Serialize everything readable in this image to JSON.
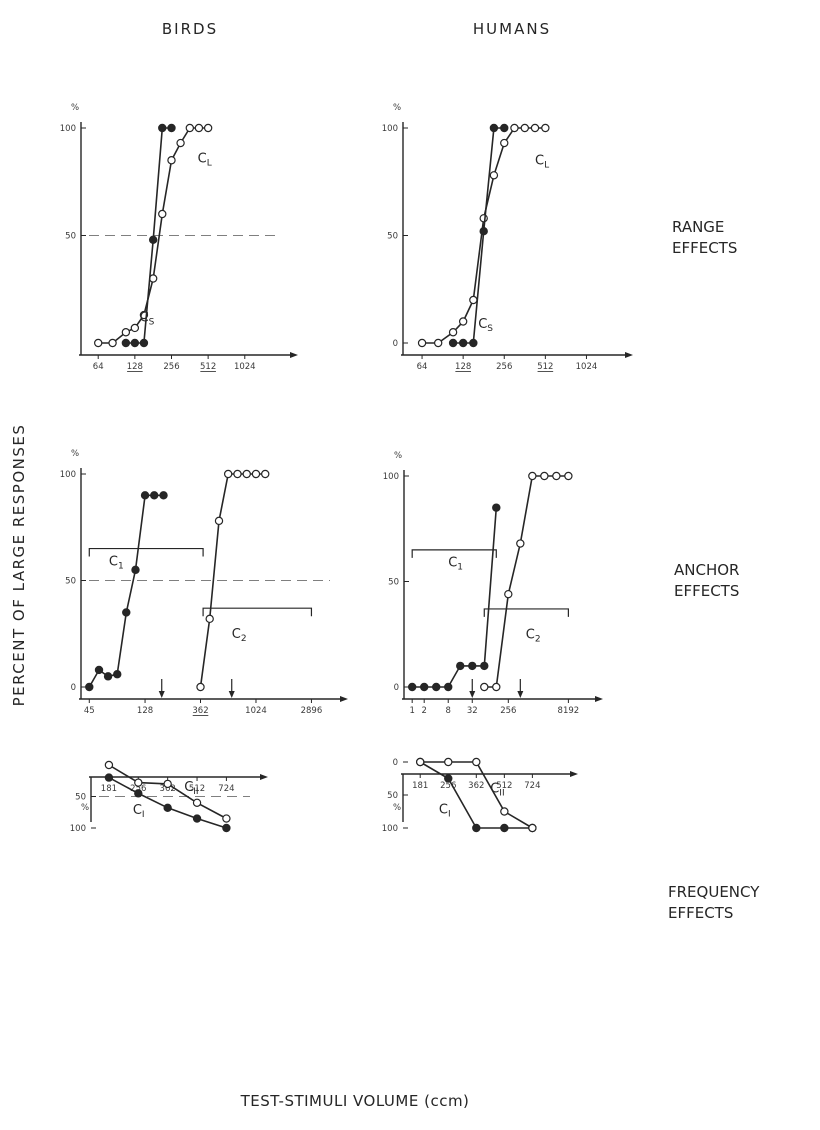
{
  "figure": {
    "col_titles": [
      "BIRDS",
      "HUMANS"
    ],
    "row_titles": [
      [
        "RANGE",
        "EFFECTS"
      ],
      [
        "ANCHOR",
        "EFFECTS"
      ],
      [
        "FREQUENCY",
        "EFFECTS"
      ]
    ],
    "ylabel": "PERCENT OF LARGE RESPONSES",
    "xlabel": "TEST-STIMULI VOLUME (ccm)"
  },
  "chart_data": [
    {
      "id": "range-birds",
      "type": "line",
      "xscale": "log2",
      "ylim": [
        0,
        100
      ],
      "xlim": [
        48,
        1650
      ],
      "yticks": [
        {
          "v": 100,
          "t": "100"
        },
        {
          "v": 50,
          "t": "50"
        }
      ],
      "ytop_label": "%",
      "mid_dash": true,
      "xticks": [
        {
          "v": 64,
          "t": "64"
        },
        {
          "v": 128,
          "t": "128",
          "u": true
        },
        {
          "v": 256,
          "t": "256"
        },
        {
          "v": 512,
          "t": "512",
          "u": true
        },
        {
          "v": 1024,
          "t": "1024"
        }
      ],
      "series": [
        {
          "name": "CL",
          "filled": false,
          "x": [
            64,
            84,
            108,
            128,
            152,
            181,
            215,
            256,
            304,
            362,
            430,
            512
          ],
          "y": [
            0,
            0,
            5,
            7,
            13,
            30,
            60,
            85,
            93,
            100,
            100,
            100
          ]
        },
        {
          "name": "CS",
          "filled": true,
          "x": [
            108,
            128,
            152,
            181,
            215,
            256
          ],
          "y": [
            0,
            0,
            0,
            48,
            100,
            100
          ]
        }
      ],
      "labels": [
        {
          "t": "C",
          "s": "L",
          "x": 420,
          "y": 84
        },
        {
          "t": "C",
          "s": "S",
          "x": 140,
          "y": 10
        }
      ],
      "brackets": [],
      "arrows": []
    },
    {
      "id": "range-humans",
      "type": "line",
      "xscale": "log2",
      "ylim": [
        0,
        100
      ],
      "xlim": [
        48,
        1400
      ],
      "yticks": [
        {
          "v": 100,
          "t": "100"
        },
        {
          "v": 50,
          "t": "50"
        },
        {
          "v": 0,
          "t": "0"
        }
      ],
      "ytop_label": "%",
      "mid_dash": false,
      "xticks": [
        {
          "v": 64,
          "t": "64"
        },
        {
          "v": 128,
          "t": "128",
          "u": true
        },
        {
          "v": 256,
          "t": "256"
        },
        {
          "v": 512,
          "t": "512",
          "u": true
        },
        {
          "v": 1024,
          "t": "1024"
        }
      ],
      "series": [
        {
          "name": "CL",
          "filled": false,
          "x": [
            64,
            84,
            108,
            128,
            152,
            181,
            215,
            256,
            304,
            362,
            430,
            512
          ],
          "y": [
            0,
            0,
            5,
            10,
            20,
            58,
            78,
            93,
            100,
            100,
            100,
            100
          ]
        },
        {
          "name": "CS",
          "filled": true,
          "x": [
            108,
            128,
            152,
            181,
            215,
            256
          ],
          "y": [
            0,
            0,
            0,
            52,
            100,
            100
          ]
        }
      ],
      "labels": [
        {
          "t": "C",
          "s": "L",
          "x": 430,
          "y": 83
        },
        {
          "t": "C",
          "s": "S",
          "x": 165,
          "y": 7
        }
      ],
      "brackets": [],
      "arrows": []
    },
    {
      "id": "anchor-birds",
      "type": "line",
      "xscale": "log2",
      "ylim": [
        0,
        100
      ],
      "xlim": [
        40,
        3400
      ],
      "yticks": [
        {
          "v": 100,
          "t": "100"
        },
        {
          "v": 50,
          "t": "50"
        },
        {
          "v": 0,
          "t": "0"
        }
      ],
      "ytop_label": "%",
      "mid_dash": true,
      "xticks": [
        {
          "v": 45,
          "t": "45"
        },
        {
          "v": 128,
          "t": "128"
        },
        {
          "v": 362,
          "t": "362",
          "u": true
        },
        {
          "v": 1024,
          "t": "1024"
        },
        {
          "v": 2896,
          "t": "2896"
        }
      ],
      "series": [
        {
          "name": "C1",
          "filled": true,
          "x": [
            45,
            54,
            64,
            76,
            90,
            107,
            128,
            152,
            181
          ],
          "y": [
            0,
            8,
            5,
            6,
            35,
            55,
            90,
            90,
            90
          ]
        },
        {
          "name": "C2",
          "filled": false,
          "x": [
            362,
            430,
            512,
            608,
            724,
            861,
            1024,
            1218
          ],
          "y": [
            0,
            32,
            78,
            100,
            100,
            100,
            100,
            100
          ]
        }
      ],
      "labels": [
        {
          "t": "C",
          "s": "1",
          "x": 65,
          "y": 57
        },
        {
          "t": "C",
          "s": "2",
          "x": 650,
          "y": 23
        }
      ],
      "brackets": [
        {
          "x1": 45,
          "x2": 380,
          "y": 65
        },
        {
          "x1": 380,
          "x2": 2896,
          "y": 37
        }
      ],
      "arrows": [
        175,
        650
      ]
    },
    {
      "id": "anchor-humans",
      "type": "line",
      "xscale": "log2",
      "ylim": [
        0,
        100
      ],
      "xlim": [
        0.7,
        12000
      ],
      "yticks": [
        {
          "v": 100,
          "t": "100"
        },
        {
          "v": 50,
          "t": "50"
        },
        {
          "v": 0,
          "t": "0"
        }
      ],
      "ytop_label": "%",
      "mid_dash": false,
      "xticks": [
        {
          "v": 1,
          "t": "1"
        },
        {
          "v": 2,
          "t": "2"
        },
        {
          "v": 8,
          "t": "8"
        },
        {
          "v": 32,
          "t": "32"
        },
        {
          "v": 256,
          "t": "256"
        },
        {
          "v": 8192,
          "t": "8192"
        }
      ],
      "series": [
        {
          "name": "C1",
          "filled": true,
          "x": [
            1,
            2,
            4,
            8,
            16,
            32,
            64,
            128
          ],
          "y": [
            0,
            0,
            0,
            0,
            10,
            10,
            10,
            85
          ]
        },
        {
          "name": "C2",
          "filled": false,
          "x": [
            64,
            128,
            256,
            512,
            1024,
            2048,
            4096,
            8192
          ],
          "y": [
            0,
            0,
            44,
            68,
            100,
            100,
            100,
            100
          ]
        }
      ],
      "labels": [
        {
          "t": "C",
          "s": "1",
          "x": 8,
          "y": 57
        },
        {
          "t": "C",
          "s": "2",
          "x": 700,
          "y": 23
        }
      ],
      "brackets": [
        {
          "x1": 1,
          "x2": 128,
          "y": 65
        },
        {
          "x1": 64,
          "x2": 8192,
          "y": 37
        }
      ],
      "arrows": [
        32,
        512
      ]
    },
    {
      "id": "frequency-birds",
      "type": "line",
      "xscale": "log2",
      "ylim": [
        0,
        100
      ],
      "xlim": [
        150,
        850
      ],
      "yticks": [
        {
          "v": 100,
          "t": "100"
        },
        {
          "v": 50,
          "t": "50"
        }
      ],
      "ytop_label": "%",
      "mid_dash": true,
      "xticks": [
        {
          "v": 181,
          "t": "181"
        },
        {
          "v": 256,
          "t": "256"
        },
        {
          "v": 362,
          "t": "362"
        },
        {
          "v": 512,
          "t": "512"
        },
        {
          "v": 724,
          "t": "724"
        }
      ],
      "series": [
        {
          "name": "CI",
          "filled": true,
          "x": [
            181,
            256,
            362,
            512,
            724
          ],
          "y": [
            20,
            45,
            68,
            85,
            100
          ]
        },
        {
          "name": "CII",
          "filled": false,
          "x": [
            181,
            256,
            362,
            512,
            724
          ],
          "y": [
            0,
            28,
            30,
            60,
            85
          ]
        }
      ],
      "labels": [
        {
          "t": "C",
          "s": "I",
          "x": 240,
          "y": 78
        },
        {
          "t": "C",
          "s": "II",
          "x": 440,
          "y": 41
        }
      ],
      "brackets": [],
      "arrows": []
    },
    {
      "id": "frequency-humans",
      "type": "line",
      "xscale": "log2",
      "ylim": [
        0,
        100
      ],
      "xlim": [
        150,
        900
      ],
      "yticks": [
        {
          "v": 100,
          "t": "100"
        },
        {
          "v": 50,
          "t": "50"
        },
        {
          "v": 0,
          "t": "0"
        }
      ],
      "ytop_label": "%",
      "mid_dash": false,
      "xticks": [
        {
          "v": 181,
          "t": "181"
        },
        {
          "v": 256,
          "t": "256"
        },
        {
          "v": 362,
          "t": "362"
        },
        {
          "v": 512,
          "t": "512"
        },
        {
          "v": 724,
          "t": "724"
        }
      ],
      "series": [
        {
          "name": "CI",
          "filled": true,
          "x": [
            181,
            256,
            362,
            512,
            724
          ],
          "y": [
            0,
            25,
            100,
            100,
            100
          ]
        },
        {
          "name": "CII",
          "filled": false,
          "x": [
            181,
            256,
            362,
            512,
            724
          ],
          "y": [
            0,
            0,
            0,
            75,
            100
          ]
        }
      ],
      "labels": [
        {
          "t": "C",
          "s": "I",
          "x": 228,
          "y": 78
        },
        {
          "t": "C",
          "s": "II",
          "x": 430,
          "y": 46
        }
      ],
      "brackets": [],
      "arrows": []
    }
  ]
}
